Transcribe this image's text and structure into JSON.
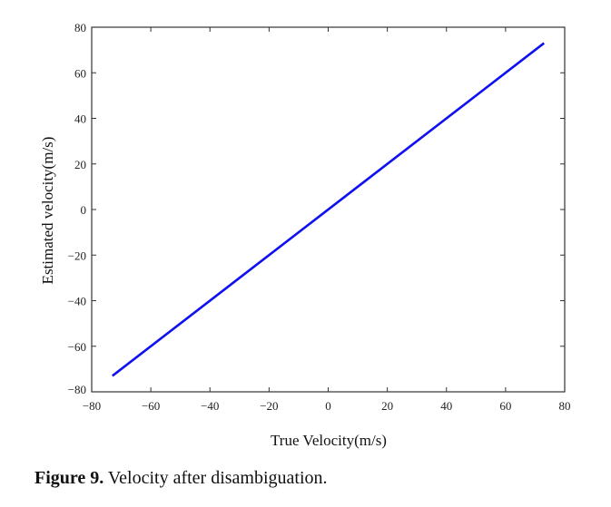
{
  "chart_data": {
    "type": "line",
    "xlabel": "True Velocity(m/s)",
    "ylabel": "Estimated velocity(m/s)",
    "xlim": [
      -80,
      80
    ],
    "ylim": [
      -80,
      80
    ],
    "xticks": [
      -80,
      -60,
      -40,
      -20,
      0,
      20,
      40,
      60,
      80
    ],
    "yticks": [
      -80,
      -60,
      -40,
      -20,
      0,
      20,
      40,
      60,
      80
    ],
    "tick_labels_x": [
      "−80",
      "−60",
      "−40",
      "−20",
      "0",
      "20",
      "40",
      "60",
      "80"
    ],
    "tick_labels_y": [
      "−80",
      "−60",
      "−40",
      "−20",
      "0",
      "20",
      "40",
      "60",
      "80"
    ],
    "grid": false,
    "series": [
      {
        "color": "#1010f0",
        "x": [
          -73,
          73
        ],
        "y": [
          -73,
          73
        ]
      }
    ]
  },
  "caption": {
    "number": "Figure 9.",
    "text": " Velocity after disambiguation."
  }
}
